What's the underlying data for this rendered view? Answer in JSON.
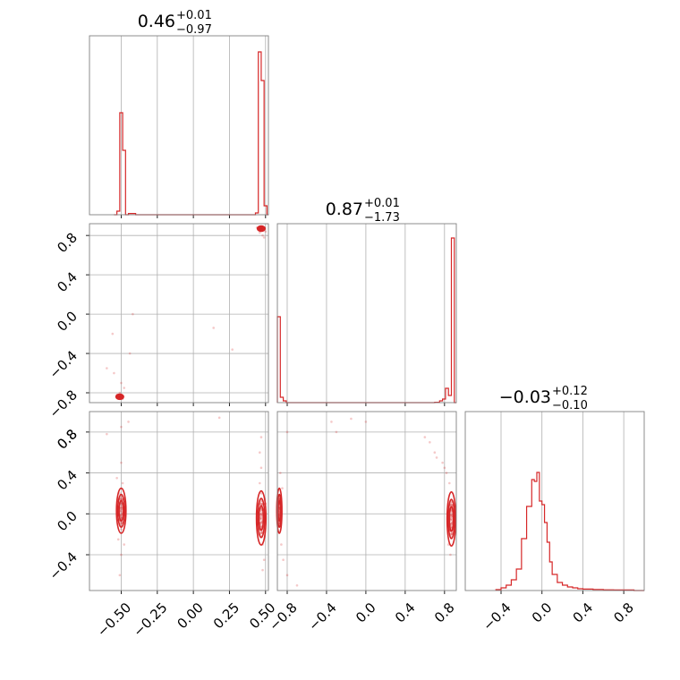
{
  "chart_data": {
    "type": "corner",
    "color": "#d62728",
    "parameters": [
      {
        "title_value": "0.46",
        "title_plus": "+0.01",
        "title_minus": "−0.97",
        "range": [
          -0.72,
          0.52
        ],
        "ticks": [
          -0.5,
          -0.25,
          0.0,
          0.25,
          0.5
        ],
        "tick_labels": [
          "−0.50",
          "−0.25",
          "0.00",
          "0.25",
          "0.50"
        ],
        "histogram": {
          "edges": [
            -0.55,
            -0.53,
            -0.51,
            -0.49,
            -0.47,
            -0.45,
            -0.4,
            -0.35,
            -0.3,
            0.43,
            0.45,
            0.47,
            0.49,
            0.51,
            0.52
          ],
          "counts": [
            0.0,
            0.02,
            0.57,
            0.36,
            0.0,
            0.007,
            0.0,
            0.0,
            0.0,
            0.01,
            0.91,
            0.75,
            0.05,
            0.0
          ]
        }
      },
      {
        "title_value": "0.87",
        "title_plus": "+0.01",
        "title_minus": "−1.73",
        "range": [
          -0.9,
          0.92
        ],
        "ticks": [
          -0.8,
          -0.4,
          0.0,
          0.4,
          0.8
        ],
        "tick_labels": [
          "−0.8",
          "−0.4",
          "0.0",
          "0.4",
          "0.8"
        ],
        "histogram": {
          "edges": [
            -0.9,
            -0.87,
            -0.84,
            -0.81,
            -0.78,
            0.7,
            0.75,
            0.78,
            0.81,
            0.84,
            0.87,
            0.9,
            0.92
          ],
          "counts": [
            0.48,
            0.03,
            0.01,
            0.0,
            0.0,
            0.002,
            0.01,
            0.02,
            0.08,
            0.04,
            0.92,
            0.0
          ]
        }
      },
      {
        "title_value": "−0.03",
        "title_plus": "+0.12",
        "title_minus": "−0.10",
        "range": [
          -0.75,
          1.0
        ],
        "ticks": [
          -0.4,
          0.0,
          0.4,
          0.8
        ],
        "tick_labels": [
          "−0.4",
          "0.0",
          "0.4",
          "0.8"
        ],
        "histogram": {
          "edges": [
            -0.45,
            -0.4,
            -0.35,
            -0.3,
            -0.25,
            -0.2,
            -0.15,
            -0.1,
            -0.075,
            -0.05,
            -0.025,
            0.0,
            0.025,
            0.05,
            0.075,
            0.1,
            0.15,
            0.2,
            0.25,
            0.3,
            0.35,
            0.4,
            0.5,
            0.6,
            0.7,
            0.8,
            0.9,
            1.0
          ],
          "counts": [
            0.005,
            0.015,
            0.03,
            0.06,
            0.12,
            0.29,
            0.47,
            0.62,
            0.61,
            0.66,
            0.5,
            0.48,
            0.38,
            0.27,
            0.16,
            0.09,
            0.045,
            0.03,
            0.02,
            0.015,
            0.01,
            0.008,
            0.006,
            0.004,
            0.003,
            0.003,
            0.0
          ]
        }
      }
    ],
    "pairs": [
      {
        "row": 1,
        "col": 0,
        "clusters": [
          {
            "cx": 0.47,
            "cy": 0.87,
            "sx": 0.012,
            "sy": 0.012
          },
          {
            "cx": -0.51,
            "cy": -0.84,
            "sx": 0.012,
            "sy": 0.012
          }
        ],
        "scatter": [
          [
            0.45,
            0.86
          ],
          [
            0.47,
            0.88
          ],
          [
            0.48,
            0.85
          ],
          [
            0.49,
            0.87
          ],
          [
            0.46,
            0.89
          ],
          [
            0.5,
            0.84
          ],
          [
            0.44,
            0.88
          ],
          [
            0.48,
            0.8
          ],
          [
            0.49,
            0.78
          ],
          [
            0.46,
            0.83
          ],
          [
            -0.52,
            -0.85
          ],
          [
            -0.5,
            -0.83
          ],
          [
            -0.53,
            -0.82
          ],
          [
            -0.49,
            -0.86
          ],
          [
            -0.51,
            -0.8
          ],
          [
            -0.6,
            -0.55
          ],
          [
            -0.56,
            -0.2
          ],
          [
            -0.42,
            0.0
          ],
          [
            -0.48,
            -0.75
          ],
          [
            0.14,
            -0.14
          ],
          [
            0.27,
            -0.36
          ],
          [
            -0.55,
            -0.6
          ],
          [
            -0.44,
            -0.4
          ],
          [
            -0.5,
            -0.7
          ]
        ]
      },
      {
        "row": 2,
        "col": 0,
        "clusters": [
          {
            "cx": -0.5,
            "cy": 0.03,
            "sx": 0.015,
            "sy": 0.1
          },
          {
            "cx": 0.47,
            "cy": -0.04,
            "sx": 0.015,
            "sy": 0.12
          }
        ],
        "scatter": [
          [
            -0.51,
            0.2
          ],
          [
            -0.5,
            -0.15
          ],
          [
            -0.49,
            0.3
          ],
          [
            -0.52,
            -0.25
          ],
          [
            -0.5,
            -0.4
          ],
          [
            -0.53,
            0.35
          ],
          [
            -0.48,
            -0.3
          ],
          [
            -0.5,
            0.5
          ],
          [
            -0.6,
            0.78
          ],
          [
            -0.45,
            0.9
          ],
          [
            -0.5,
            0.85
          ],
          [
            0.46,
            0.3
          ],
          [
            0.48,
            -0.3
          ],
          [
            0.47,
            0.45
          ],
          [
            0.49,
            -0.45
          ],
          [
            0.46,
            0.6
          ],
          [
            0.48,
            -0.55
          ],
          [
            0.47,
            0.75
          ],
          [
            0.5,
            0.1
          ],
          [
            0.18,
            0.94
          ],
          [
            0.45,
            -0.2
          ],
          [
            0.47,
            0.2
          ],
          [
            -0.51,
            -0.6
          ]
        ]
      },
      {
        "row": 2,
        "col": 1,
        "clusters": [
          {
            "cx": -0.88,
            "cy": 0.03,
            "sx": 0.012,
            "sy": 0.1
          },
          {
            "cx": 0.87,
            "cy": -0.05,
            "sx": 0.02,
            "sy": 0.12
          }
        ],
        "scatter": [
          [
            0.8,
            0.45
          ],
          [
            0.72,
            0.55
          ],
          [
            0.65,
            0.7
          ],
          [
            0.85,
            0.3
          ],
          [
            0.84,
            -0.3
          ],
          [
            0.82,
            0.4
          ],
          [
            0.86,
            -0.4
          ],
          [
            0.78,
            0.5
          ],
          [
            -0.86,
            -0.3
          ],
          [
            -0.84,
            -0.45
          ],
          [
            -0.8,
            -0.6
          ],
          [
            -0.7,
            -0.7
          ],
          [
            -0.85,
            0.25
          ],
          [
            -0.35,
            0.9
          ],
          [
            -0.3,
            0.8
          ],
          [
            -0.15,
            0.93
          ],
          [
            0.0,
            0.9
          ],
          [
            -0.8,
            0.8
          ],
          [
            0.6,
            0.75
          ],
          [
            0.7,
            0.6
          ],
          [
            -0.87,
            0.4
          ]
        ]
      }
    ]
  }
}
